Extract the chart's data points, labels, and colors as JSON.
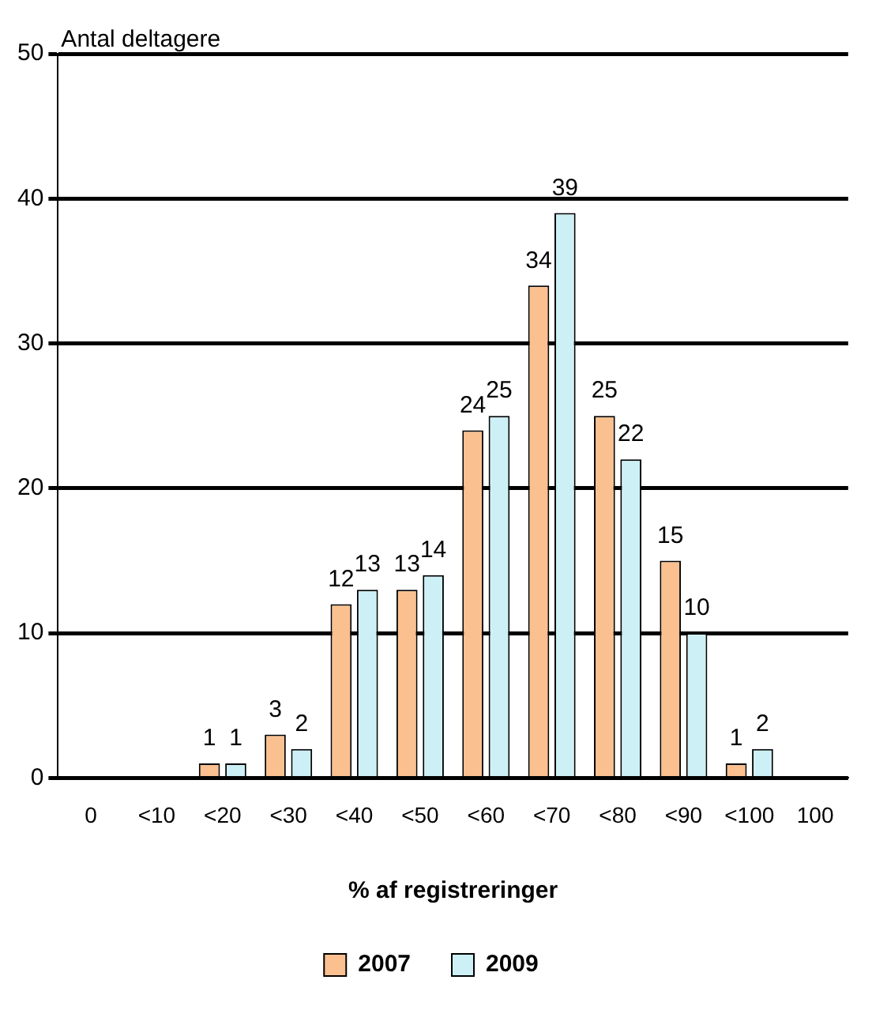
{
  "chart_data": {
    "type": "bar",
    "ylabel": "Antal deltagere",
    "xlabel": "% af registreringer",
    "categories": [
      "0",
      "<10",
      "<20",
      "<30",
      "<40",
      "<50",
      "<60",
      "<70",
      "<80",
      "<90",
      "<100",
      "100"
    ],
    "series": [
      {
        "name": "2007",
        "color": "#fac090",
        "values": [
          0,
          0,
          1,
          3,
          12,
          13,
          24,
          34,
          25,
          15,
          1,
          0
        ],
        "value_labels": [
          null,
          null,
          "1",
          "3",
          "12",
          "13",
          "24",
          "34",
          "25",
          "15",
          "1",
          null
        ]
      },
      {
        "name": "2009",
        "color": "#ccf0f5",
        "values": [
          0,
          0,
          1,
          2,
          13,
          14,
          25,
          39,
          22,
          10,
          2,
          0
        ],
        "value_labels": [
          null,
          null,
          "1",
          "2",
          "13",
          "14",
          "25",
          "39",
          "22",
          "10",
          "2",
          null
        ]
      }
    ],
    "ylim": [
      0,
      50
    ],
    "yticks": [
      0,
      10,
      20,
      30,
      40,
      50
    ],
    "grid": "y",
    "legend": "bottom"
  }
}
